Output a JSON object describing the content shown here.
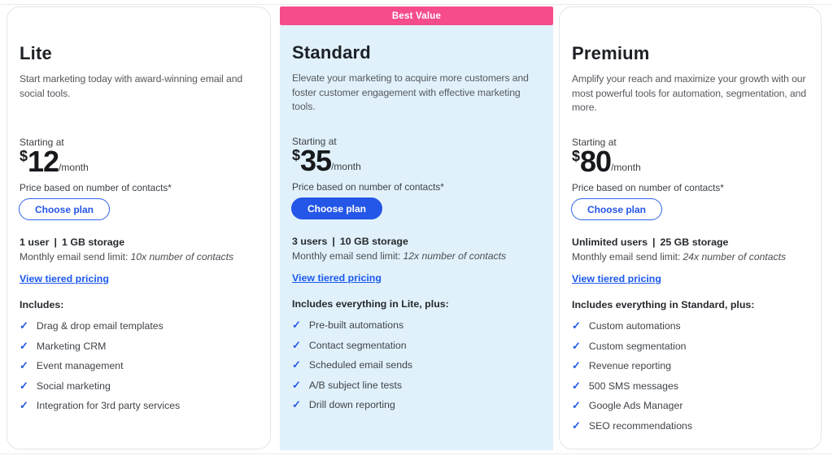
{
  "colors": {
    "accent_blue": "#2456e8",
    "badge_pink": "#f64c8c",
    "standard_panel_blue": "#e0f1fb",
    "link_blue": "#1a57ee"
  },
  "labels": {
    "pipe": "|"
  },
  "plans": [
    {
      "name": "Lite",
      "description": "Start marketing today with award-winning email and social tools.",
      "starting_at": "Starting at",
      "currency": "$",
      "amount": "12",
      "period": "/month",
      "price_note": "Price based on number of contacts*",
      "button_label": "Choose plan",
      "users": "1 user",
      "storage": "1 GB storage",
      "send_limit_label": "Monthly email send limit:",
      "send_limit_value": "10x number of contacts",
      "tiered_link": "View tiered pricing",
      "includes_label": "Includes:",
      "features": [
        "Drag & drop email templates",
        "Marketing CRM",
        "Event management",
        "Social marketing",
        "Integration for 3rd party services"
      ]
    },
    {
      "badge": "Best Value",
      "name": "Standard",
      "description": "Elevate your marketing to acquire more customers and foster customer engagement with effective marketing tools.",
      "starting_at": "Starting at",
      "currency": "$",
      "amount": "35",
      "period": "/month",
      "price_note": "Price based on number of contacts*",
      "button_label": "Choose plan",
      "users": "3 users",
      "storage": "10 GB storage",
      "send_limit_label": "Monthly email send limit:",
      "send_limit_value": "12x number of contacts",
      "tiered_link": "View tiered pricing",
      "includes_label": "Includes everything in Lite, plus:",
      "features": [
        "Pre-built automations",
        "Contact segmentation",
        "Scheduled email sends",
        "A/B subject line tests",
        "Drill down reporting"
      ]
    },
    {
      "name": "Premium",
      "description": "Amplify your reach and maximize your growth with our most powerful tools for automation, segmentation, and more.",
      "starting_at": "Starting at",
      "currency": "$",
      "amount": "80",
      "period": "/month",
      "price_note": "Price based on number of contacts*",
      "button_label": "Choose plan",
      "users": "Unlimited users",
      "storage": "25 GB storage",
      "send_limit_label": "Monthly email send limit:",
      "send_limit_value": "24x number of contacts",
      "tiered_link": "View tiered pricing",
      "includes_label": "Includes everything in Standard, plus:",
      "features": [
        "Custom automations",
        "Custom segmentation",
        "Revenue reporting",
        "500 SMS messages",
        "Google Ads Manager",
        "SEO recommendations"
      ]
    }
  ]
}
